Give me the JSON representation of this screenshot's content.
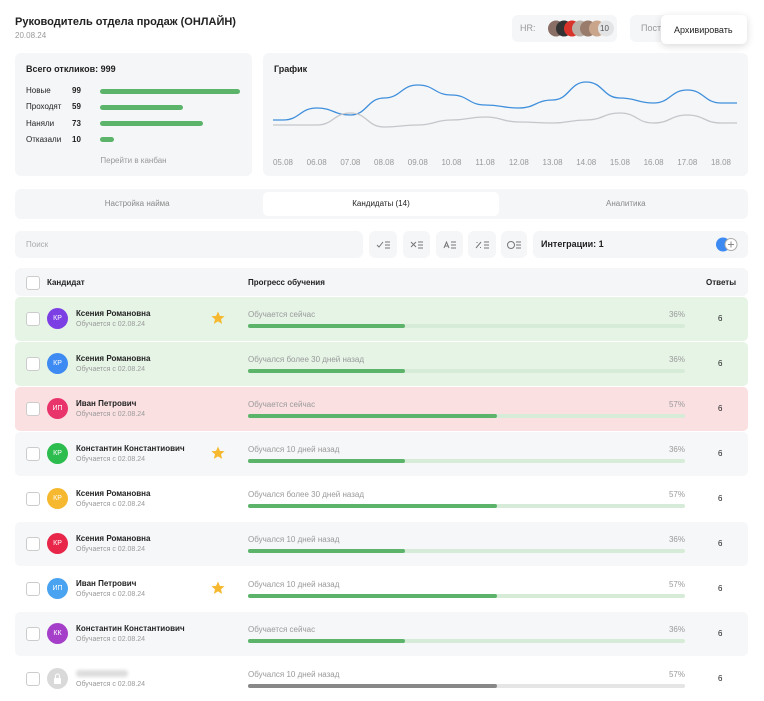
{
  "header": {
    "title": "Руководитель отдела продаж (ОНЛАЙН)",
    "date": "20.08.24",
    "hr_label": "HR:",
    "hr_count": "10",
    "button": "Пост",
    "popup": "Архивировать"
  },
  "stats": {
    "title": "Всего откликов: 999",
    "link": "Перейти в канбан",
    "max": 100,
    "color": "#5cb46b",
    "rows": [
      {
        "label": "Новые",
        "value": 99
      },
      {
        "label": "Проходят",
        "value": 59
      },
      {
        "label": "Наняли",
        "value": 73
      },
      {
        "label": "Отказали",
        "value": 10
      }
    ]
  },
  "chart": {
    "title": "График",
    "ylim": [
      0,
      60
    ],
    "x": [
      "05.08",
      "06.08",
      "07.08",
      "08.08",
      "09.08",
      "10.08",
      "11.08",
      "12.08",
      "13.08",
      "14.08",
      "15.08",
      "16.08",
      "17.08",
      "18.08"
    ],
    "series": [
      {
        "color": "#3f8fdc",
        "values": [
          15,
          27,
          20,
          37,
          50,
          40,
          30,
          27,
          35,
          53,
          37,
          32,
          45,
          32
        ]
      },
      {
        "color": "#c4c6ca",
        "values": [
          10,
          10,
          22,
          8,
          10,
          15,
          18,
          13,
          12,
          15,
          22,
          12,
          20,
          12
        ]
      }
    ]
  },
  "tabs": [
    "Настройка найма",
    "Кандидаты (14)",
    "Аналитика"
  ],
  "active_tab": 1,
  "search": "Поиск",
  "integrations": "Интеграции: 1",
  "table": {
    "columns": [
      "Кандидат",
      "Прогресс обучения",
      "Ответы"
    ],
    "rows": [
      {
        "initials": "КР",
        "name": "Ксения Романовна",
        "subtitle": "Обучается с 02.08.24",
        "star": true,
        "status": "Обучается сейчас",
        "progress": 36,
        "progress_label": "36%",
        "answers": 6,
        "avatar": "#7b3fe4",
        "highlight": "green"
      },
      {
        "initials": "КР",
        "name": "Ксения Романовна",
        "subtitle": "Обучается с 02.08.24",
        "star": false,
        "status": "Обучался более 30 дней назад",
        "progress": 36,
        "progress_label": "36%",
        "answers": 6,
        "avatar": "#3d8bf2",
        "highlight": "green"
      },
      {
        "initials": "ИП",
        "name": "Иван Петрович",
        "subtitle": "Обучается с 02.08.24",
        "star": false,
        "status": "Обучается сейчас",
        "progress": 57,
        "progress_label": "57%",
        "answers": 6,
        "avatar": "#e8336b",
        "highlight": "red"
      },
      {
        "initials": "КР",
        "name": "Константин Константиович",
        "subtitle": "Обучается с 02.08.24",
        "star": true,
        "status": "Обучался 10 дней назад",
        "progress": 36,
        "progress_label": "36%",
        "answers": 6,
        "avatar": "#2dbd4e",
        "highlight": "gray"
      },
      {
        "initials": "КР",
        "name": "Ксения Романовна",
        "subtitle": "Обучается с 02.08.24",
        "star": false,
        "status": "Обучался более 30 дней назад",
        "progress": 57,
        "progress_label": "57%",
        "answers": 6,
        "avatar": "#f5b82e",
        "highlight": "white"
      },
      {
        "initials": "КР",
        "name": "Ксения Романовна",
        "subtitle": "Обучается с 02.08.24",
        "star": false,
        "status": "Обучался 10 дней назад",
        "progress": 36,
        "progress_label": "36%",
        "answers": 6,
        "avatar": "#e8264a",
        "highlight": "gray"
      },
      {
        "initials": "ИП",
        "name": "Иван Петрович",
        "subtitle": "Обучается с 02.08.24",
        "star": true,
        "status": "Обучался 10 дней назад",
        "progress": 57,
        "progress_label": "57%",
        "answers": 6,
        "avatar": "#4aa3f0",
        "highlight": "white"
      },
      {
        "initials": "КК",
        "name": "Константин Константиович",
        "subtitle": "Обучается с 02.08.24",
        "star": false,
        "status": "Обучается сейчас",
        "progress": 36,
        "progress_label": "36%",
        "answers": 6,
        "avatar": "#a53fc9",
        "highlight": "gray"
      },
      {
        "subtitle": "Обучается с 02.08.24",
        "star": false,
        "status": "Обучался 10 дней назад",
        "progress": 57,
        "progress_label": "57%",
        "answers": 6,
        "avatar": "#d9d9d9",
        "highlight": "white",
        "locked": true
      }
    ]
  }
}
